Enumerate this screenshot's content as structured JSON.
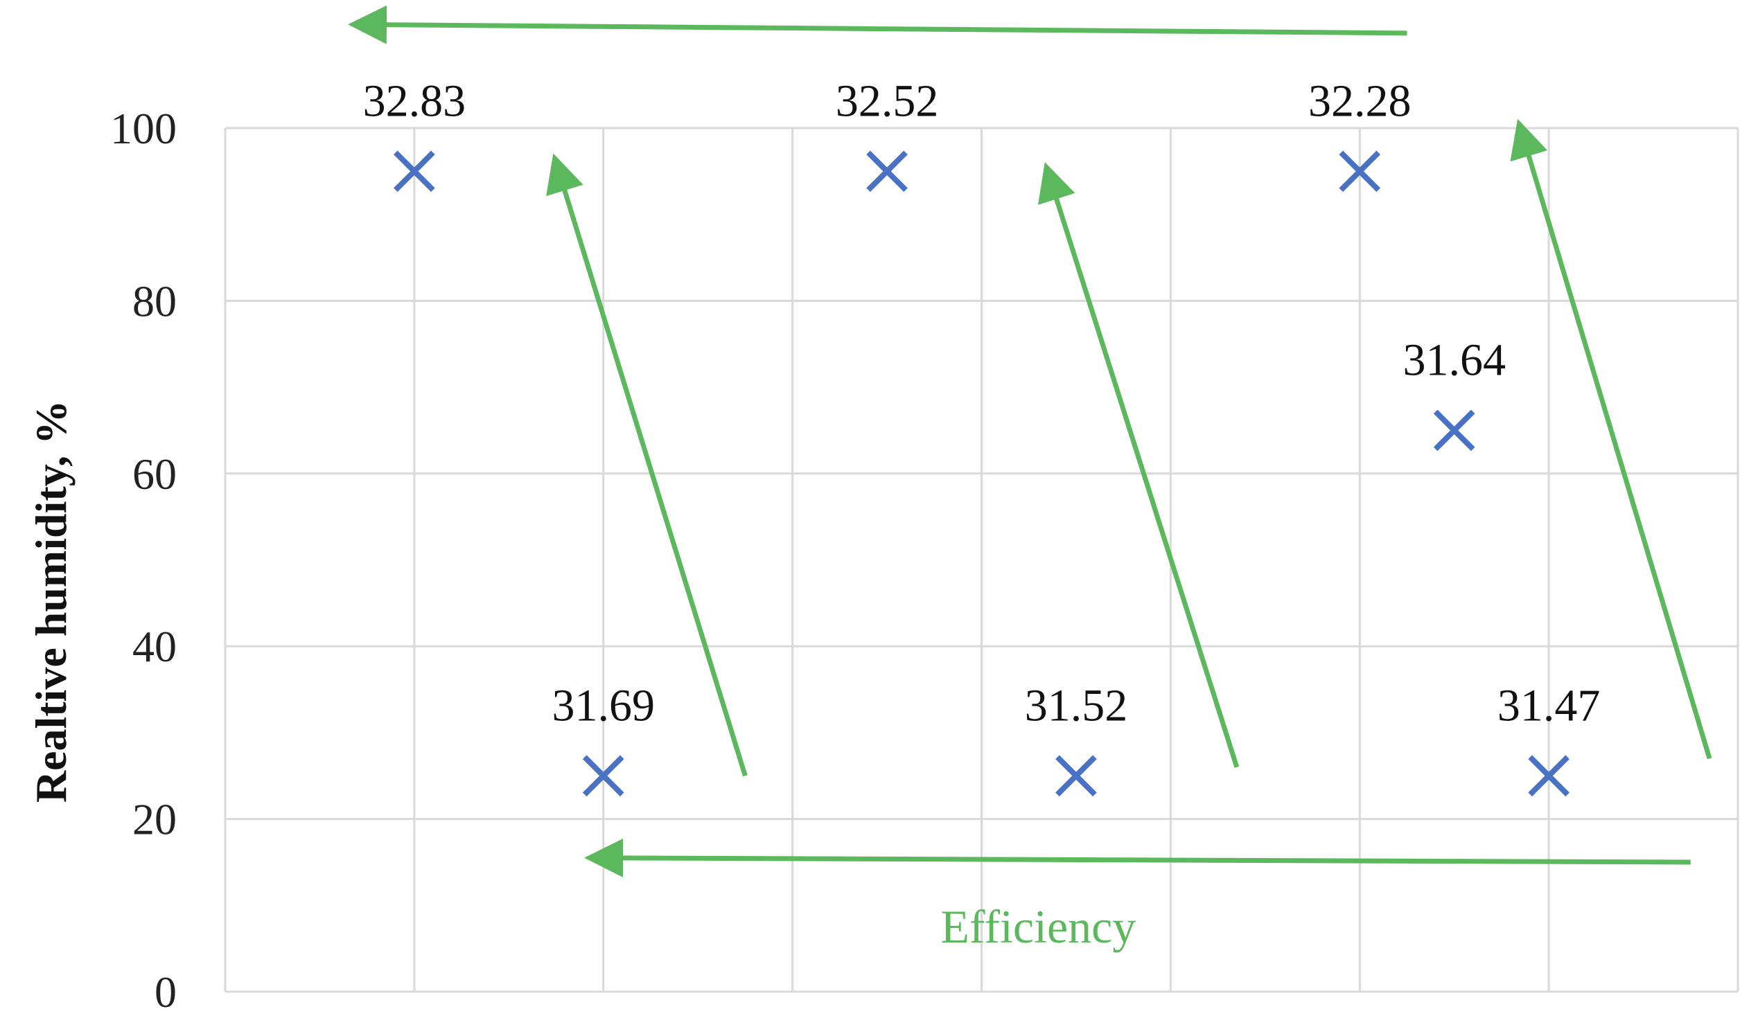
{
  "chart_data": {
    "type": "scatter",
    "ylabel": "Realtive humidity, %",
    "xlabel": "",
    "ylim": [
      0,
      100
    ],
    "yticks": [
      0,
      20,
      40,
      60,
      80,
      100
    ],
    "xlim": [
      0,
      8
    ],
    "x_gridlines": [
      1,
      2,
      3,
      4,
      5,
      6,
      7
    ],
    "grid": true,
    "marker": "x",
    "marker_color": "#4a72c4",
    "series": [
      {
        "points": [
          {
            "x": 1.0,
            "y": 95,
            "label": "32.83"
          },
          {
            "x": 2.0,
            "y": 25,
            "label": "31.69"
          },
          {
            "x": 3.5,
            "y": 95,
            "label": "32.52"
          },
          {
            "x": 4.5,
            "y": 25,
            "label": "31.52"
          },
          {
            "x": 6.0,
            "y": 95,
            "label": "32.28"
          },
          {
            "x": 6.5,
            "y": 65,
            "label": "31.64"
          },
          {
            "x": 7.0,
            "y": 25,
            "label": "31.47"
          }
        ]
      }
    ],
    "annotation": {
      "text": "Efficiency",
      "color": "#5cb85c"
    },
    "arrows": [
      {
        "from": [
          6.25,
          111
        ],
        "to": [
          0.7,
          112
        ]
      },
      {
        "from": [
          7.75,
          15
        ],
        "to": [
          1.95,
          15.5
        ]
      },
      {
        "from": [
          2.75,
          25
        ],
        "to": [
          1.75,
          96
        ]
      },
      {
        "from": [
          5.35,
          26
        ],
        "to": [
          4.35,
          95
        ]
      },
      {
        "from": [
          7.85,
          27
        ],
        "to": [
          6.85,
          100
        ]
      }
    ]
  }
}
